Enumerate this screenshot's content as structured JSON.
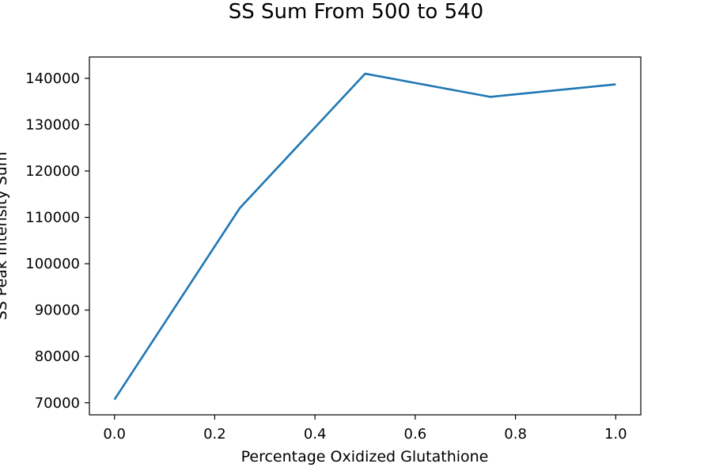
{
  "chart_data": {
    "type": "line",
    "title": "SS Sum From 500 to 540",
    "xlabel": "Percentage Oxidized Glutathione",
    "ylabel": "SS Peak Intensity Sum",
    "x": [
      0.0,
      0.25,
      0.5,
      0.75,
      1.0
    ],
    "series": [
      {
        "values": [
          70700,
          112000,
          141000,
          136000,
          138700
        ],
        "color": "#1f77b4"
      }
    ],
    "xlim": [
      -0.05,
      1.05
    ],
    "ylim": [
      67400,
      144600
    ],
    "xticks": [
      0.0,
      0.2,
      0.4,
      0.6,
      0.8,
      1.0
    ],
    "xtick_labels": [
      "0.0",
      "0.2",
      "0.4",
      "0.6",
      "0.8",
      "1.0"
    ],
    "yticks": [
      70000,
      80000,
      90000,
      100000,
      110000,
      120000,
      130000,
      140000
    ],
    "ytick_labels": [
      "70000",
      "80000",
      "90000",
      "100000",
      "110000",
      "120000",
      "130000",
      "140000"
    ],
    "grid": false
  }
}
